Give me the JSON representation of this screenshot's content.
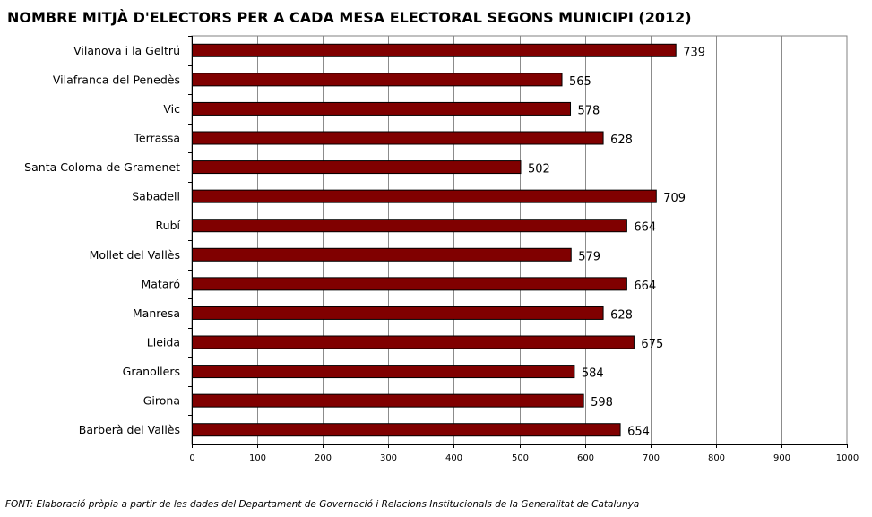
{
  "chart_data": {
    "type": "bar",
    "orientation": "horizontal",
    "title": "NOMBRE MITJÀ D'ELECTORS PER A CADA MESA ELECTORAL SEGONS MUNICIPI (2012)",
    "categories": [
      "Vilanova i la Geltrú",
      "Vilafranca del Penedès",
      "Vic",
      "Terrassa",
      "Santa Coloma de Gramenet",
      "Sabadell",
      "Rubí",
      "Mollet del Vallès",
      "Mataró",
      "Manresa",
      "Lleida",
      "Granollers",
      "Girona",
      "Barberà del Vallès"
    ],
    "values": [
      739,
      565,
      578,
      628,
      502,
      709,
      664,
      579,
      664,
      628,
      675,
      584,
      598,
      654
    ],
    "xlim": [
      0,
      1000
    ],
    "xticks": [
      "0",
      "100",
      "200",
      "300",
      "400",
      "500",
      "600",
      "700",
      "800",
      "900",
      "1000"
    ],
    "xlabel": "",
    "ylabel": "",
    "grid": true,
    "bar_color": "#800000"
  },
  "source": "FONT: Elaboració pròpia a partir de les dades del Departament de Governació i Relacions Institucionals de la Generalitat de Catalunya"
}
